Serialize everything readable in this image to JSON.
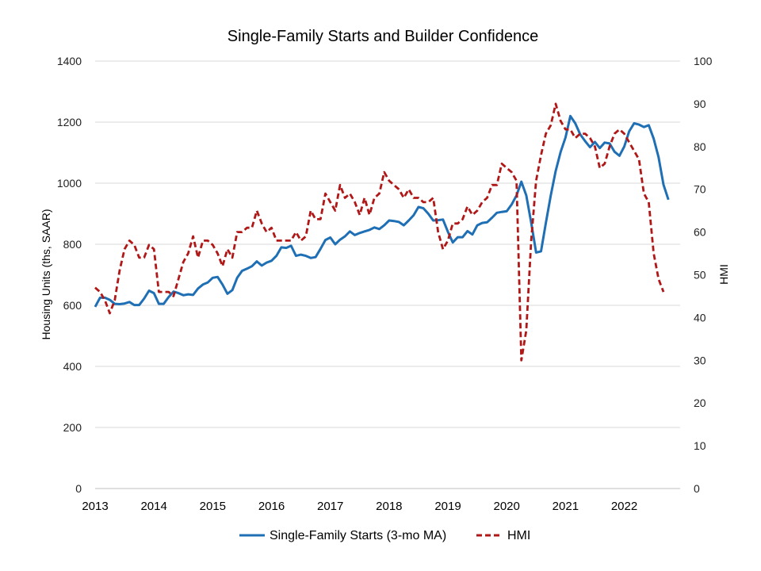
{
  "chart_data": {
    "type": "line",
    "title": "Single-Family Starts and Builder Confidence",
    "y_left": {
      "label": "Housing Units (ths, SAAR)",
      "min": 0,
      "max": 1400,
      "ticks": [
        "0",
        "200",
        "400",
        "600",
        "800",
        "1000",
        "1200",
        "1400"
      ]
    },
    "y_right": {
      "label": "HMI",
      "min": 0,
      "max": 100,
      "ticks": [
        "0",
        "10",
        "20",
        "30",
        "40",
        "50",
        "60",
        "70",
        "80",
        "90",
        "100"
      ]
    },
    "x_axis": {
      "min": 2013.0,
      "max": 2022.95,
      "ticks": [
        "2013",
        "2014",
        "2015",
        "2016",
        "2017",
        "2018",
        "2019",
        "2020",
        "2021",
        "2022"
      ]
    },
    "grid": "horizontal",
    "legend_position": "bottom",
    "start": {
      "year": 2013,
      "month": 1
    },
    "series": [
      {
        "name": "Single-Family Starts (3-mo MA)",
        "axis": "left",
        "color": "#1f6fb5",
        "dash": "solid",
        "values": [
          595,
          625,
          625,
          618,
          605,
          604,
          606,
          611,
          601,
          601,
          622,
          648,
          640,
          605,
          605,
          627,
          645,
          640,
          633,
          636,
          634,
          655,
          668,
          675,
          690,
          693,
          668,
          638,
          650,
          690,
          713,
          720,
          728,
          744,
          730,
          740,
          746,
          762,
          790,
          788,
          795,
          762,
          766,
          762,
          755,
          758,
          785,
          814,
          822,
          800,
          815,
          826,
          842,
          830,
          837,
          842,
          847,
          855,
          850,
          862,
          878,
          876,
          873,
          862,
          878,
          895,
          922,
          918,
          900,
          878,
          879,
          881,
          841,
          806,
          823,
          823,
          843,
          832,
          862,
          870,
          872,
          887,
          903,
          906,
          908,
          930,
          960,
          1005,
          960,
          871,
          773,
          777,
          870,
          960,
          1040,
          1102,
          1150,
          1220,
          1196,
          1160,
          1138,
          1118,
          1135,
          1115,
          1133,
          1130,
          1103,
          1090,
          1120,
          1170,
          1196,
          1192,
          1184,
          1190,
          1146,
          1085,
          995,
          946
        ]
      },
      {
        "name": "HMI",
        "axis": "right",
        "color": "#b01818",
        "dash": "dashed",
        "values": [
          47,
          46,
          44,
          41,
          44,
          51,
          56,
          58,
          57,
          54,
          54,
          57,
          56,
          46,
          46,
          46,
          45,
          49,
          53,
          55,
          59,
          54,
          58,
          58,
          57,
          55,
          52,
          56,
          54,
          60,
          60,
          61,
          61,
          65,
          62,
          60,
          61,
          58,
          58,
          58,
          58,
          60,
          58,
          59,
          65,
          63,
          63,
          69,
          67,
          65,
          71,
          68,
          69,
          67,
          64,
          68,
          64,
          68,
          69,
          74,
          72,
          71,
          70,
          68,
          70,
          68,
          68,
          67,
          67,
          68,
          60,
          56,
          58,
          62,
          62,
          63,
          66,
          64,
          65,
          67,
          68,
          71,
          71,
          76,
          75,
          74,
          72,
          30,
          37,
          58,
          72,
          78,
          83,
          85,
          90,
          86,
          84,
          84,
          82,
          83,
          83,
          82,
          80,
          75,
          76,
          80,
          83,
          84,
          83,
          81,
          79,
          77,
          69,
          67,
          55,
          49,
          46
        ]
      }
    ]
  }
}
